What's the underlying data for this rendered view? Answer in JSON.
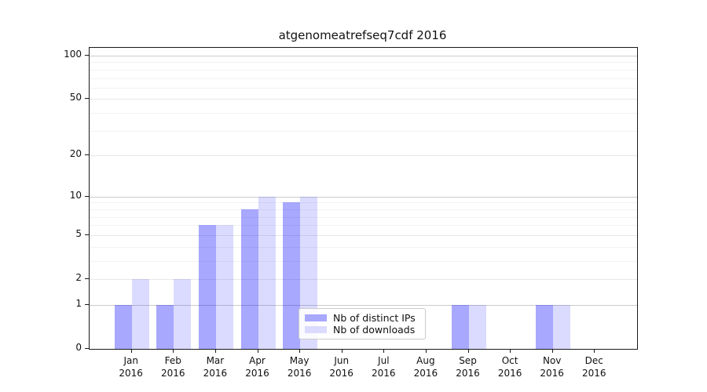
{
  "chart_data": {
    "type": "bar",
    "title": "atgenomeatrefseq7cdf 2016",
    "categories": [
      "Jan",
      "Feb",
      "Mar",
      "Apr",
      "May",
      "Jun",
      "Jul",
      "Aug",
      "Sep",
      "Oct",
      "Nov",
      "Dec"
    ],
    "x_tick_year": "2016",
    "series": [
      {
        "name": "Nb of distinct IPs",
        "color": "rgba(0,0,255,0.34)",
        "color_hex": "#a8a8ff",
        "values": [
          1,
          1,
          6,
          8,
          9,
          0,
          0,
          0,
          1,
          0,
          1,
          0
        ]
      },
      {
        "name": "Nb of downloads",
        "color": "rgba(0,0,255,0.14)",
        "color_hex": "#dbdbff",
        "values": [
          2,
          2,
          6,
          10,
          10,
          0,
          0,
          0,
          1,
          0,
          1,
          0
        ]
      }
    ],
    "y_axis": {
      "scale": "log1p",
      "ticks": [
        0,
        1,
        2,
        5,
        10,
        20,
        50,
        100
      ],
      "minor_ticks": [
        3,
        4,
        6,
        7,
        8,
        9,
        30,
        40,
        60,
        70,
        80,
        90
      ],
      "range": [
        0,
        114
      ]
    },
    "xlabel": "",
    "ylabel": "",
    "grid": "on",
    "legend_position": "lower center inside",
    "colors": {
      "major_gridline": "#cccccc",
      "mid_gridline": "#e8e8e8",
      "minor_gridline": "#f2f2f2",
      "axis": "#1a1a1a",
      "background": "#ffffff"
    }
  }
}
